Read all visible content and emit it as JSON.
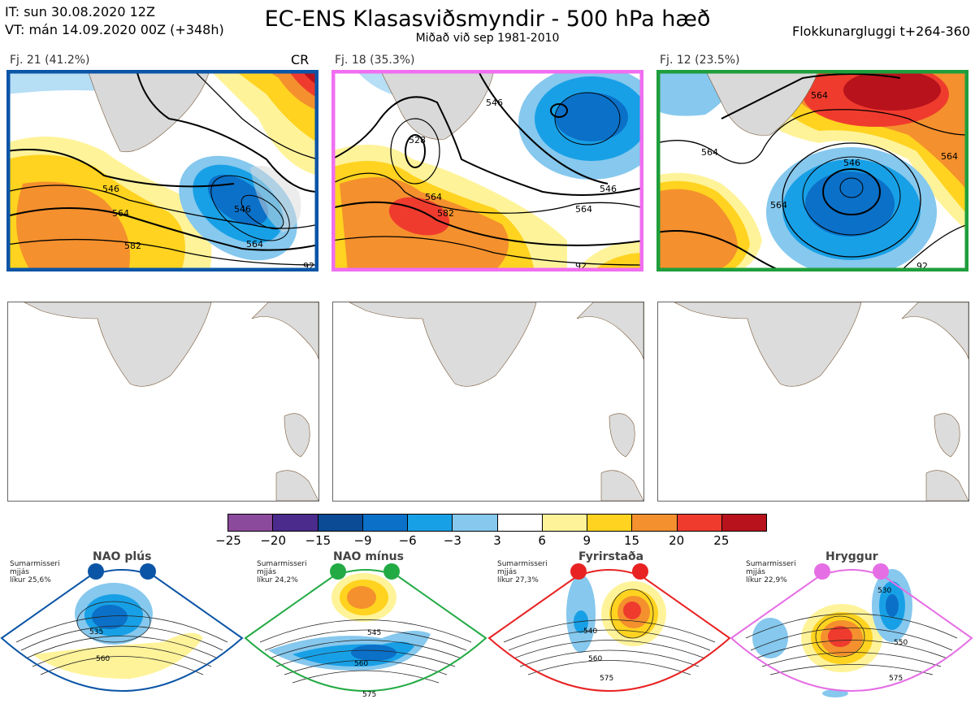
{
  "header": {
    "it_line": "IT: sun 30.08.2020 12Z",
    "vt_line": "VT: mán 14.09.2020 00Z  (+348h)",
    "title": "EC-ENS Klasasviðsmyndir - 500 hPa hæð",
    "subtitle": "Miðað við sep 1981-2010",
    "window": "Flokkunargluggi t+264-360"
  },
  "clusters": [
    {
      "label": "Fj. 21 (41.2%)",
      "tag": "CR",
      "frame_color": "#0b55a6",
      "contours": [
        "546",
        "564",
        "582",
        "546",
        "564",
        "92"
      ]
    },
    {
      "label": "Fj. 18 (35.3%)",
      "tag": "",
      "frame_color": "#f06ef0",
      "contours": [
        "528",
        "546",
        "564",
        "582",
        "546",
        "564",
        "92"
      ]
    },
    {
      "label": "Fj. 12 (23.5%)",
      "tag": "",
      "frame_color": "#1f9e3c",
      "contours": [
        "564",
        "564",
        "546",
        "564",
        "564",
        "92"
      ]
    }
  ],
  "colorbar": {
    "colors": [
      "#8c4a9c",
      "#4b2b8c",
      "#0b4a94",
      "#0b70c8",
      "#18a0e6",
      "#86c8ee",
      "#ffffff",
      "#fff39a",
      "#ffd31f",
      "#f4902d",
      "#ef3b2e",
      "#b8121c"
    ],
    "ticks": [
      "−25",
      "−20",
      "−15",
      "−9",
      "−6",
      "−3",
      "3",
      "6",
      "9",
      "15",
      "20",
      "25"
    ]
  },
  "regimes": [
    {
      "name": "NAO plús",
      "color": "#0b55a6",
      "note": [
        "Sumarmisseri",
        "mjjás",
        "líkur 25,6%"
      ],
      "contours": [
        "535",
        "560"
      ]
    },
    {
      "name": "NAO mínus",
      "color": "#22aa44",
      "note": [
        "Sumarmisseri",
        "mjjás",
        "líkur 24,2%"
      ],
      "contours": [
        "545",
        "560",
        "575"
      ]
    },
    {
      "name": "Fyrirstaða",
      "color": "#e82222",
      "note": [
        "Sumarmisseri",
        "mjjás",
        "líkur 27,3%"
      ],
      "contours": [
        "540",
        "560",
        "575"
      ]
    },
    {
      "name": "Hryggur",
      "color": "#e56ee5",
      "note": [
        "Sumarmisseri",
        "mjjás",
        "líkur 22,9%"
      ],
      "contours": [
        "530",
        "550",
        "575"
      ]
    }
  ]
}
